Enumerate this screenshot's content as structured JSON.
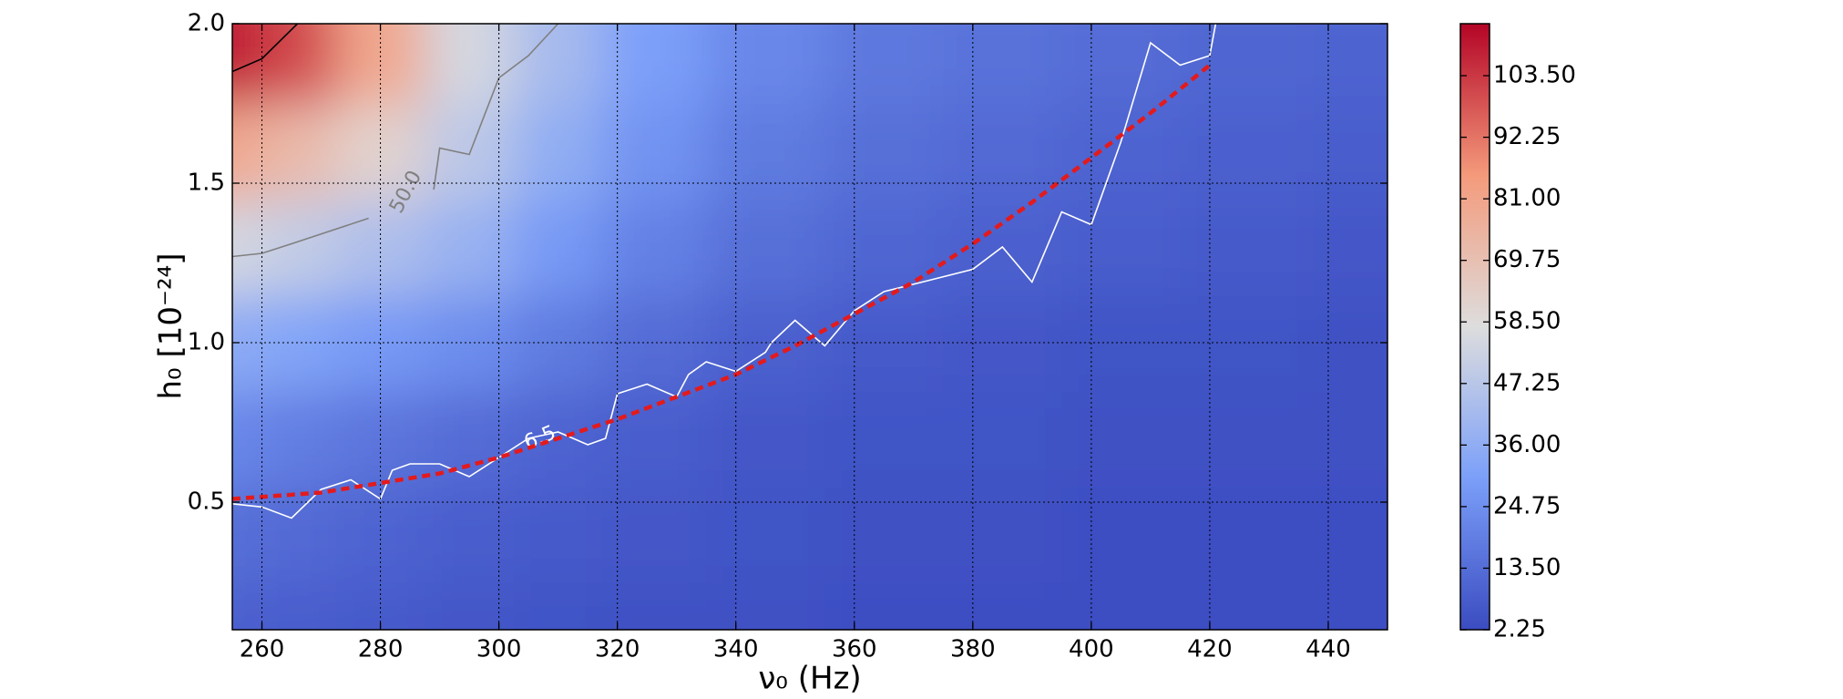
{
  "chart_data": {
    "type": "heatmap",
    "xlabel": "ν₀ (Hz)",
    "ylabel": "h₀ [10⁻²⁴]",
    "xlim": [
      255,
      450
    ],
    "ylim": [
      0.1,
      2.0
    ],
    "xticks": [
      260,
      280,
      300,
      320,
      340,
      360,
      380,
      400,
      420,
      440
    ],
    "yticks": [
      0.5,
      {
        "value": 1.0,
        "label": "1.0"
      },
      1.5,
      {
        "value": 2.0,
        "label": "2.0"
      }
    ],
    "grid": true,
    "x": [
      255,
      265,
      280,
      295,
      310,
      325,
      345,
      365,
      385,
      405,
      425,
      450
    ],
    "y": [
      0.1,
      0.4,
      0.7,
      1.0,
      1.3,
      1.6,
      1.9
    ],
    "z": [
      [
        9,
        8,
        7,
        6,
        5,
        4,
        4,
        3,
        3,
        3,
        3,
        3
      ],
      [
        14,
        12,
        10,
        8,
        7,
        6,
        5,
        4,
        4,
        3,
        3,
        3
      ],
      [
        22,
        19,
        16,
        13,
        10,
        8,
        6,
        5,
        5,
        4,
        4,
        4
      ],
      [
        35,
        32,
        28,
        24,
        18,
        13,
        9,
        7,
        6,
        5,
        5,
        4
      ],
      [
        55,
        50,
        44,
        38,
        28,
        20,
        14,
        11,
        9,
        8,
        7,
        6
      ],
      [
        80,
        72,
        62,
        48,
        36,
        26,
        18,
        14,
        12,
        10,
        9,
        8
      ],
      [
        108,
        100,
        80,
        55,
        42,
        30,
        22,
        17,
        15,
        13,
        11,
        10
      ]
    ],
    "colormap": [
      "#3b4cc0",
      "#7b9ff9",
      "#dddddd",
      "#f49a7b",
      "#b40426"
    ],
    "clim": [
      2.25,
      113
    ],
    "cbar_ticks": [
      2.25,
      {
        "value": 13.5,
        "label": "13.50"
      },
      24.75,
      {
        "value": 36,
        "label": "36.00"
      },
      47.25,
      {
        "value": 58.5,
        "label": "58.50"
      },
      69.75,
      {
        "value": 81,
        "label": "81.00"
      },
      92.25,
      {
        "value": 103.5,
        "label": "103.50"
      }
    ],
    "contours": [
      {
        "level": 6.5,
        "color": "#ffffff",
        "x": [
          255,
          260,
          265,
          270,
          275,
          280,
          282,
          285,
          290,
          295,
          300,
          305,
          310,
          315,
          318,
          320,
          325,
          330,
          332,
          335,
          340,
          345,
          346,
          350,
          355,
          360,
          365,
          380,
          385,
          390,
          395,
          400,
          405,
          410,
          415,
          420,
          421
        ],
        "y": [
          0.495,
          0.485,
          0.45,
          0.54,
          0.57,
          0.51,
          0.6,
          0.62,
          0.62,
          0.58,
          0.64,
          0.7,
          0.72,
          0.68,
          0.7,
          0.84,
          0.87,
          0.83,
          0.9,
          0.94,
          0.91,
          0.97,
          1.0,
          1.07,
          0.99,
          1.1,
          1.16,
          1.23,
          1.3,
          1.19,
          1.41,
          1.37,
          1.63,
          1.94,
          1.87,
          1.9,
          2.0
        ]
      },
      {
        "level": {
          "value": 50,
          "label": "50.0"
        },
        "color": "#808080",
        "x": [
          255,
          260,
          265,
          278,
          null,
          289,
          290,
          295,
          300,
          305,
          310
        ],
        "y": [
          1.27,
          1.28,
          1.31,
          1.39,
          null,
          1.48,
          1.61,
          1.59,
          1.83,
          1.9,
          2.0
        ]
      },
      {
        "color": "#000000",
        "x": [
          255,
          260,
          266
        ],
        "y": [
          1.85,
          1.89,
          2.0
        ]
      }
    ],
    "fit": {
      "color": "#e41a1c",
      "x": [
        255,
        270,
        280,
        290,
        300,
        310,
        320,
        330,
        340,
        350,
        360,
        370,
        380,
        390,
        400,
        410,
        420
      ],
      "y": [
        0.51,
        0.53,
        0.56,
        0.59,
        0.64,
        0.7,
        0.76,
        0.83,
        0.9,
        0.99,
        1.09,
        1.19,
        1.31,
        1.44,
        1.58,
        1.72,
        1.87
      ]
    }
  }
}
